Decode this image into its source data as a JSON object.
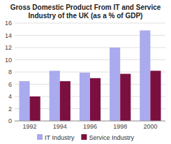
{
  "chart_data": {
    "type": "bar",
    "title": "Gross Domestic Product From IT and Service Industry of the UK (as a % of GDP)",
    "categories": [
      "1992",
      "1994",
      "1996",
      "1998",
      "2000"
    ],
    "series": [
      {
        "name": "IT Industry",
        "color": "#aaaaee",
        "values": [
          6.5,
          8.2,
          7.9,
          12.0,
          14.8
        ]
      },
      {
        "name": "Service Industry",
        "color": "#7B1040",
        "values": [
          4.0,
          6.5,
          7.0,
          7.7,
          8.2
        ]
      }
    ],
    "ylim": [
      0,
      16
    ],
    "yticks": [
      0,
      2,
      4,
      6,
      8,
      10,
      12,
      14,
      16
    ],
    "grid": true,
    "legend": "bottom"
  }
}
